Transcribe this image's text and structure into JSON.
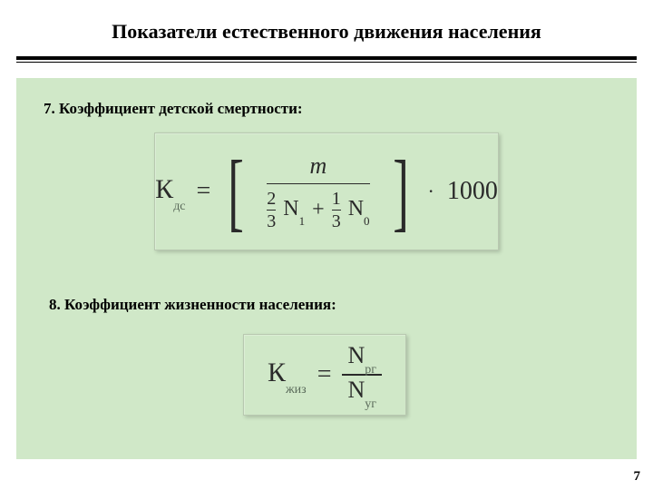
{
  "title": {
    "text": "Показатели естественного движения населения",
    "fontsize": 22,
    "color": "#000000"
  },
  "rule": {
    "top_thickness": 4,
    "bottom_thickness": 1,
    "color": "#000000"
  },
  "panel": {
    "background": "#d0e8c8"
  },
  "section7": {
    "label": "7. Коэффициент детской смертности:",
    "label_fontsize": 17,
    "formula": {
      "K_symbol": "К",
      "K_sub": "дс",
      "eq": "=",
      "bracket_open": "[",
      "bracket_close": "]",
      "numerator": "m",
      "denominator": {
        "t1_num": "2",
        "t1_den": "3",
        "t1_var": "N",
        "t1_sub": "1",
        "plus": "+",
        "t2_num": "1",
        "t2_den": "3",
        "t2_var": "N",
        "t2_sub": "0"
      },
      "dot": "·",
      "thousand": "1000",
      "text_color": "#2a2a2a",
      "box_border": "#b8c8b0"
    }
  },
  "section8": {
    "label": "8. Коэффициент жизненности населения:",
    "label_fontsize": 17,
    "formula": {
      "K_symbol": "К",
      "K_sub": "жиз",
      "eq": "=",
      "num_var": "N",
      "num_sub": "рг",
      "den_var": "N",
      "den_sub": "уг",
      "text_color": "#2a2a2a",
      "box_border": "#b8c8b0"
    }
  },
  "page_number": "7"
}
